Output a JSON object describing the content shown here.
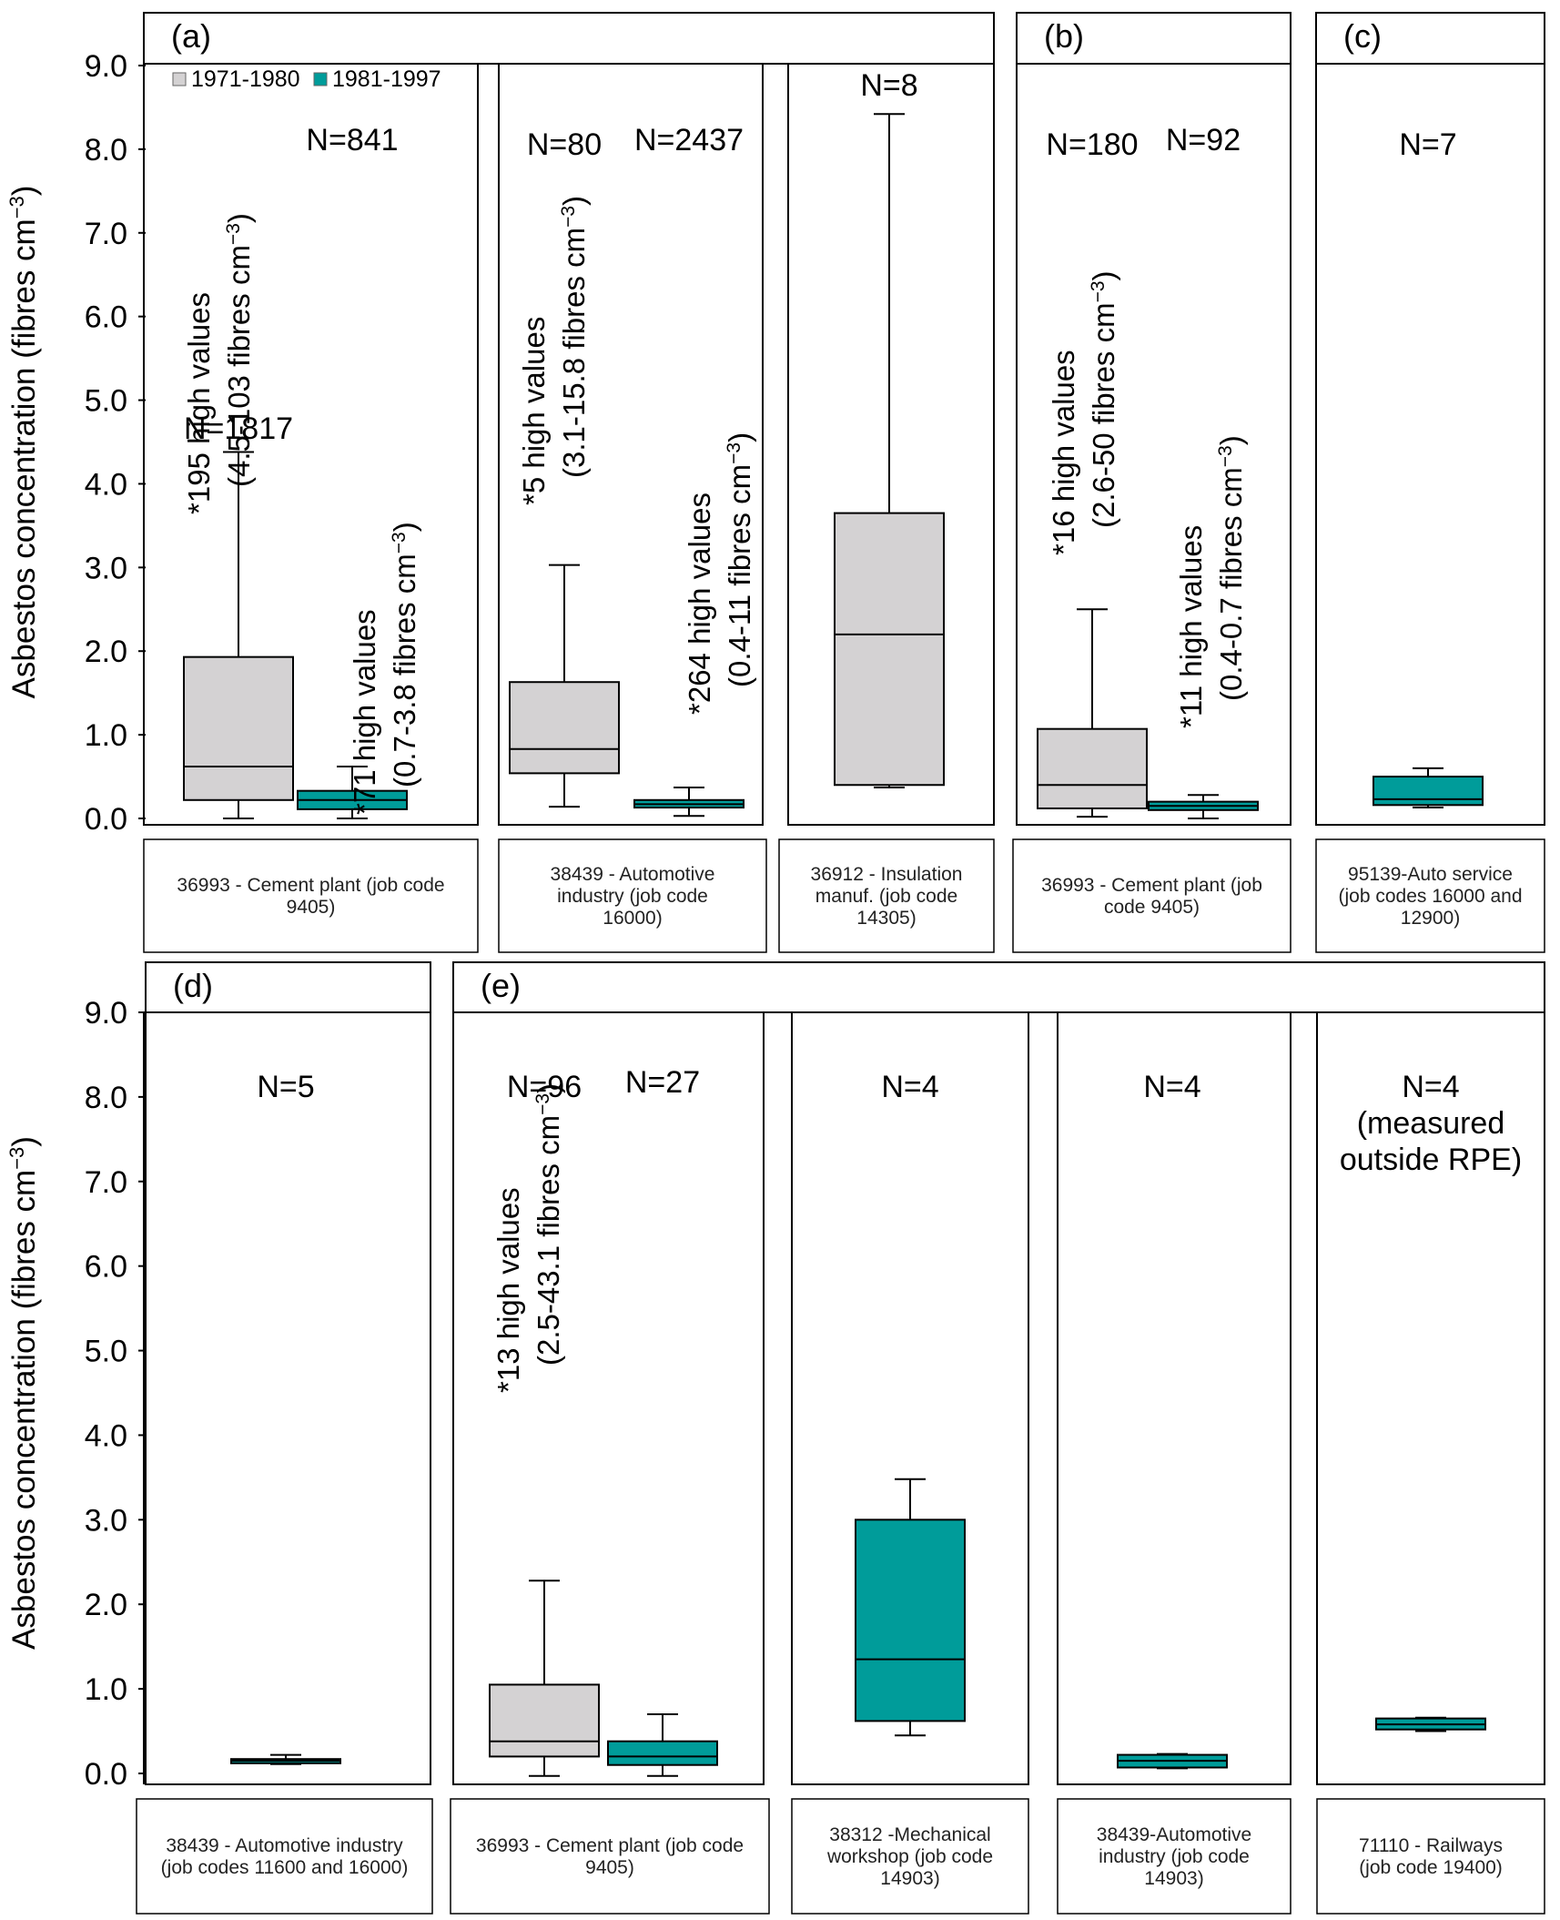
{
  "colors": {
    "early": "#d4d2d3",
    "late": "#009c9a",
    "frame": "#000000"
  },
  "chart_data": [
    {
      "id": "a",
      "type": "box",
      "title": "(a)",
      "ylabel": "Asbestos concentration (fibres cm⁻³)",
      "yticks": [
        "0.0",
        "1.0",
        "2.0",
        "3.0",
        "4.0",
        "5.0",
        "6.0",
        "7.0",
        "8.0",
        "9.0"
      ],
      "ylim": [
        0,
        9
      ],
      "legend": [
        {
          "label": "1971-1980",
          "color": "#d4d2d3"
        },
        {
          "label": "1981-1997",
          "color": "#009c9a"
        }
      ],
      "subplots": [
        {
          "caption": "36993 - Cement plant (job code 9405)",
          "boxes": [
            {
              "period": "1971-1980",
              "n_label": "N=1817",
              "min": 0.0,
              "q1": 0.22,
              "median": 0.62,
              "q3": 1.93,
              "max": 4.38,
              "note": [
                "*195 high values",
                "(4.5-103 fibres cm⁻³)"
              ]
            },
            {
              "period": "1981-1997",
              "n_label": "N=841",
              "min": 0.0,
              "q1": 0.11,
              "median": 0.22,
              "q3": 0.33,
              "max": 0.62,
              "note": [
                "*71 high values",
                "(0.7-3.8 fibres cm⁻³)"
              ]
            }
          ]
        },
        {
          "caption": "38439 - Automotive industry (job code 16000)",
          "boxes": [
            {
              "period": "1971-1980",
              "n_label": "N=80",
              "min": 0.14,
              "q1": 0.54,
              "median": 0.83,
              "q3": 1.63,
              "max": 3.03,
              "note": [
                "*5 high values",
                "(3.1-15.8 fibres cm⁻³)"
              ]
            },
            {
              "period": "1981-1997",
              "n_label": "N=2437",
              "min": 0.03,
              "q1": 0.13,
              "median": 0.17,
              "q3": 0.22,
              "max": 0.37,
              "note": [
                "*264 high values",
                "(0.4-11 fibres cm⁻³)"
              ]
            }
          ]
        },
        {
          "caption": "36912 - Insulation manuf. (job code 14305)",
          "boxes": [
            {
              "period": "1971-1980",
              "n_label": "N=8",
              "min": 0.37,
              "q1": 0.4,
              "median": 2.2,
              "q3": 3.65,
              "max": 8.42
            }
          ]
        }
      ]
    },
    {
      "id": "b",
      "type": "box",
      "title": "(b)",
      "subplots": [
        {
          "caption": "36993 - Cement plant (job code 9405)",
          "boxes": [
            {
              "period": "1971-1980",
              "n_label": "N=180",
              "min": 0.02,
              "q1": 0.12,
              "median": 0.4,
              "q3": 1.07,
              "max": 2.5,
              "note": [
                "*16 high values",
                "(2.6-50 fibres cm⁻³)"
              ]
            },
            {
              "period": "1981-1997",
              "n_label": "N=92",
              "min": 0.0,
              "q1": 0.1,
              "median": 0.15,
              "q3": 0.2,
              "max": 0.28,
              "note": [
                "*11 high values",
                "(0.4-0.7 fibres cm⁻³)"
              ]
            }
          ]
        }
      ]
    },
    {
      "id": "c",
      "type": "box",
      "title": "(c)",
      "subplots": [
        {
          "caption": "95139-Auto service (job codes 16000 and 12900)",
          "boxes": [
            {
              "period": "1981-1997",
              "n_label": "N=7",
              "min": 0.13,
              "q1": 0.16,
              "median": 0.23,
              "q3": 0.5,
              "max": 0.6
            }
          ]
        }
      ]
    },
    {
      "id": "d",
      "type": "box",
      "title": "(d)",
      "ylabel": "Asbestos concentration (fibres cm⁻³)",
      "yticks": [
        "0.0",
        "1.0",
        "2.0",
        "3.0",
        "4.0",
        "5.0",
        "6.0",
        "7.0",
        "8.0",
        "9.0"
      ],
      "ylim": [
        0,
        9
      ],
      "subplots": [
        {
          "caption": "38439 - Automotive industry (job codes 11600 and 16000)",
          "boxes": [
            {
              "period": "1981-1997",
              "n_label": "N=5",
              "min": 0.11,
              "q1": 0.12,
              "median": 0.15,
              "q3": 0.17,
              "max": 0.22
            }
          ]
        }
      ]
    },
    {
      "id": "e",
      "type": "box",
      "title": "(e)",
      "subplots": [
        {
          "caption": "36993 - Cement plant (job code 9405)",
          "boxes": [
            {
              "period": "1971-1980",
              "n_label": "N=96",
              "min": -0.03,
              "q1": 0.2,
              "median": 0.38,
              "q3": 1.05,
              "max": 2.28,
              "note": [
                "*13 high values",
                "(2.5-43.1 fibres cm⁻³)"
              ]
            },
            {
              "period": "1981-1997",
              "n_label": "N=27",
              "min": -0.03,
              "q1": 0.1,
              "median": 0.2,
              "q3": 0.38,
              "max": 0.7
            }
          ]
        },
        {
          "caption": "38312 -Mechanical workshop (job code 14903)",
          "boxes": [
            {
              "period": "1981-1997",
              "n_label": "N=4",
              "min": 0.45,
              "q1": 0.62,
              "median": 1.35,
              "q3": 3.0,
              "max": 3.48
            }
          ]
        },
        {
          "caption": "38439-Automotive industry (job code 14903)",
          "boxes": [
            {
              "period": "1981-1997",
              "n_label": "N=4",
              "min": 0.06,
              "q1": 0.07,
              "median": 0.15,
              "q3": 0.22,
              "max": 0.23
            }
          ]
        },
        {
          "caption": "71110 - Railways (job code 19400)",
          "boxes": [
            {
              "period": "1981-1997",
              "n_label": [
                "N=4",
                "(measured",
                "outside RPE)"
              ],
              "min": 0.5,
              "q1": 0.52,
              "median": 0.58,
              "q3": 0.65,
              "max": 0.66
            }
          ]
        }
      ]
    }
  ]
}
